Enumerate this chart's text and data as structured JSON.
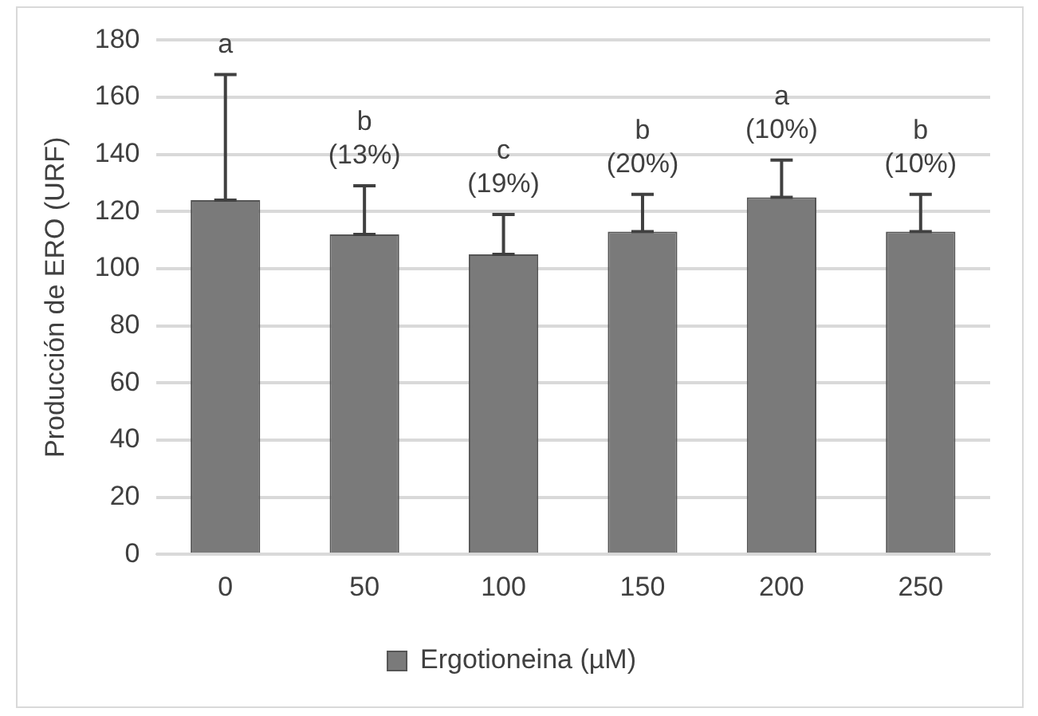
{
  "chart_data": {
    "type": "bar",
    "ylabel": "Producción de ERO (URF)",
    "categories": [
      "0",
      "50",
      "100",
      "150",
      "200",
      "250"
    ],
    "series": [
      {
        "name": "Ergotioneina (µM)",
        "color": "#7a7a7a",
        "values": [
          124,
          112,
          105,
          113,
          125,
          113
        ],
        "errors": [
          [
            124,
            168
          ],
          [
            112,
            129
          ],
          [
            105,
            119
          ],
          [
            113,
            126
          ],
          [
            125,
            138
          ],
          [
            113,
            126
          ]
        ]
      }
    ],
    "ylim": [
      0,
      180
    ],
    "yticks": [
      0,
      20,
      40,
      60,
      80,
      100,
      120,
      140,
      160,
      180
    ],
    "grid": "y",
    "legend": "bottom",
    "annotations": [
      "a",
      "b\n(13%)",
      "c\n(19%)",
      "b\n(20%)",
      "a\n(10%)",
      "b\n(10%)"
    ]
  }
}
